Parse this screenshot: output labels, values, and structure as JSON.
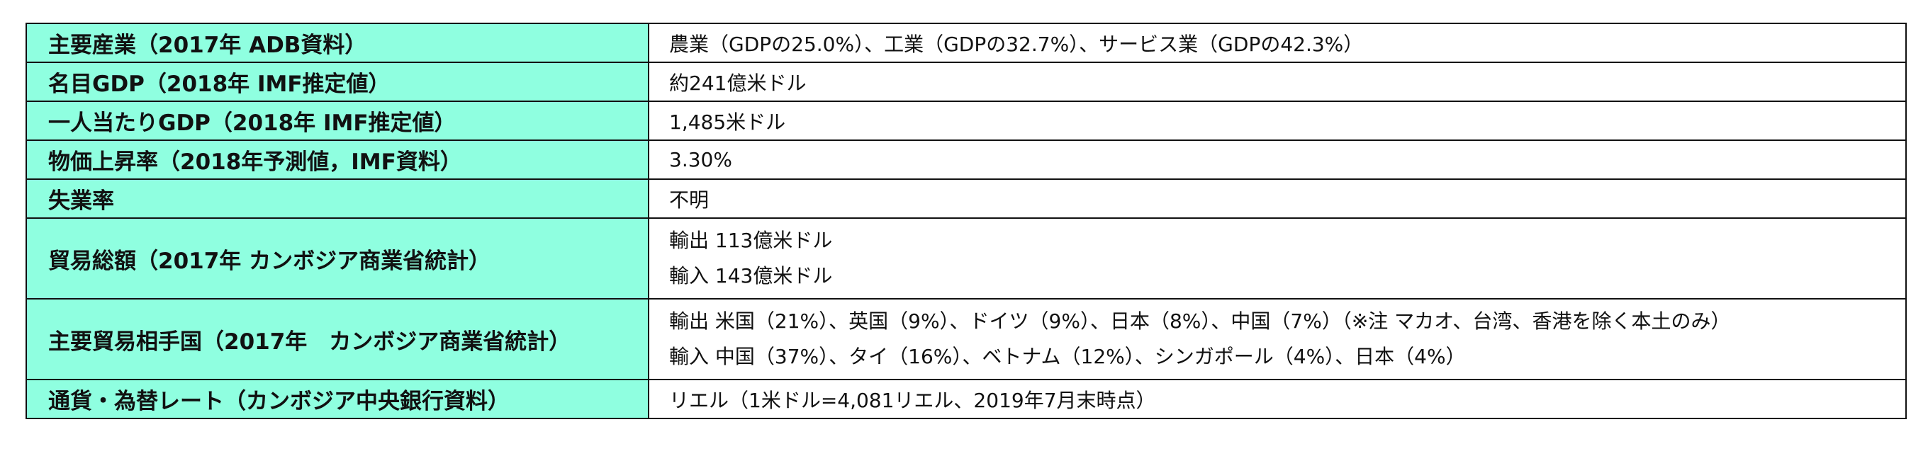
{
  "rows": [
    {
      "label": "主要産業（2017年 ADB資料）",
      "values": [
        "農業（GDPの25.0%）、工業（GDPの32.7%）、サービス業（GDPの42.3%）"
      ]
    },
    {
      "label": "名目GDP（2018年 IMF推定値）",
      "values": [
        "約241億米ドル"
      ]
    },
    {
      "label": "一人当たりGDP（2018年 IMF推定値）",
      "values": [
        "1,485米ドル"
      ]
    },
    {
      "label": "物価上昇率（2018年予測値，IMF資料）",
      "values": [
        "3.30%"
      ]
    },
    {
      "label": "失業率",
      "values": [
        "不明"
      ]
    },
    {
      "label": "貿易総額（2017年 カンボジア商業省統計）",
      "values": [
        "輸出 113億米ドル",
        "輸入 143億米ドル"
      ]
    },
    {
      "label": "主要貿易相手国（2017年　カンボジア商業省統計）",
      "values": [
        "輸出 米国（21%）、英国（9%）、ドイツ（9%）、日本（8%）、中国（7%）（※注 マカオ、台湾、香港を除く本土のみ）",
        "輸入 中国（37%）、タイ（16%）、ベトナム（12%）、シンガポール（4%）、日本（4%）"
      ]
    },
    {
      "label": "通貨・為替レート（カンボジア中央銀行資料）",
      "values": [
        "リエル（1米ドル=4,081リエル、2019年7月末時点）"
      ]
    }
  ]
}
